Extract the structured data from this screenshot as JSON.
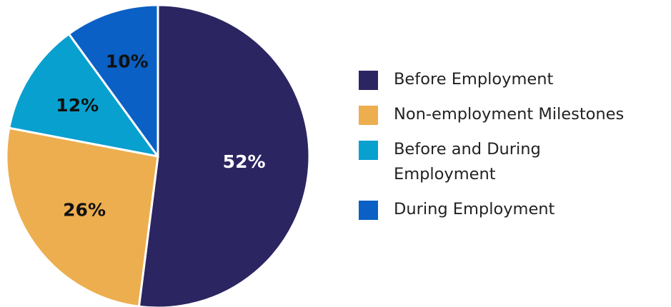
{
  "chart_data": {
    "type": "pie",
    "categories": [
      "Before Employment",
      "Non-employment Milestones",
      "Before and During Employment",
      "During Employment"
    ],
    "values": [
      52,
      26,
      12,
      10
    ],
    "value_labels": [
      "52%",
      "26%",
      "12%",
      "10%"
    ],
    "colors": [
      "#2b2562",
      "#edae4f",
      "#08a0cf",
      "#0a60c4"
    ],
    "label_colors": [
      "#ffffff",
      "#111111",
      "#111111",
      "#111111"
    ],
    "start": "12 o'clock",
    "direction": "clockwise",
    "legend_position": "right",
    "title": ""
  },
  "legend": {
    "items": [
      {
        "label": "Before Employment",
        "color": "#2b2562"
      },
      {
        "label": "Non-employment Milestones",
        "color": "#edae4f"
      },
      {
        "label": "Before and During Employment",
        "color": "#08a0cf"
      },
      {
        "label": "During Employment",
        "color": "#0a60c4"
      }
    ]
  }
}
